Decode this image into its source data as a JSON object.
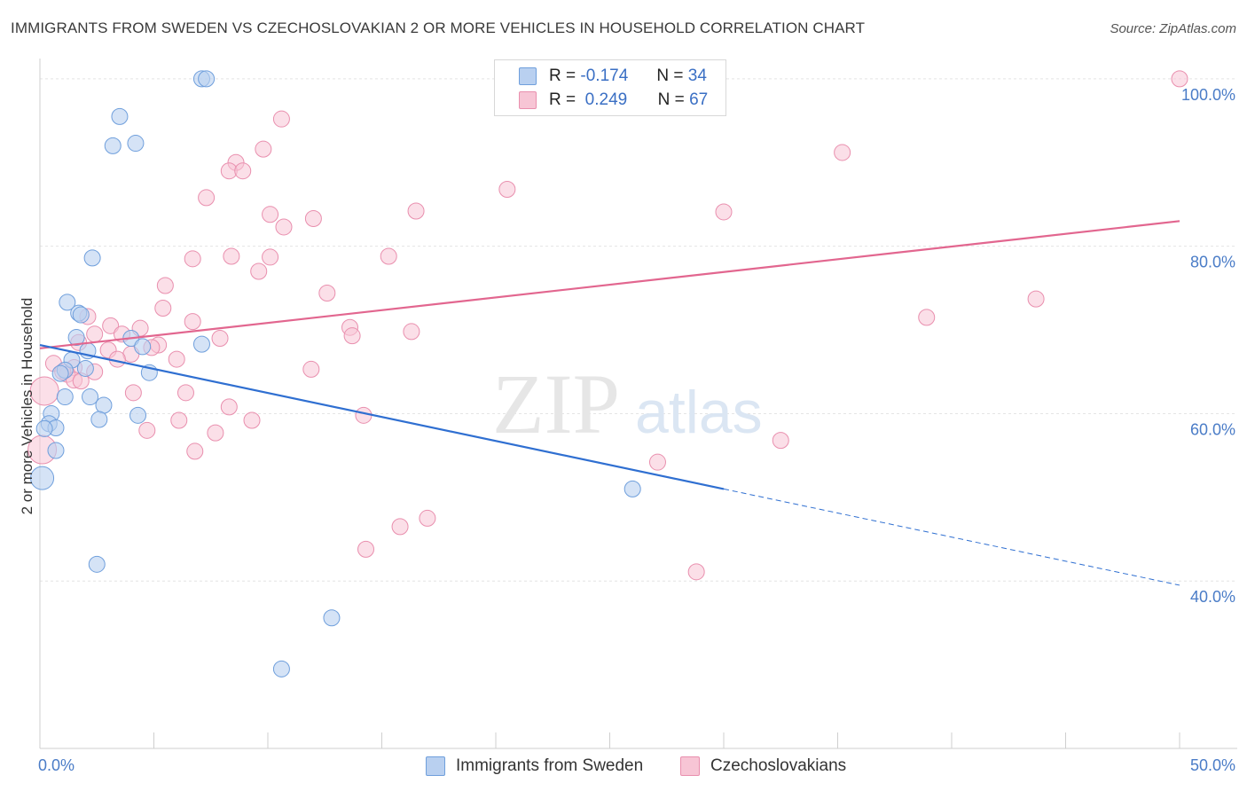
{
  "header": {
    "title": "IMMIGRANTS FROM SWEDEN VS CZECHOSLOVAKIAN 2 OR MORE VEHICLES IN HOUSEHOLD CORRELATION CHART",
    "source": "Source: ZipAtlas.com"
  },
  "legend": {
    "rows": [
      {
        "r_label": "R =",
        "r_value": "-0.174",
        "n_label": "N =",
        "n_value": "34"
      },
      {
        "r_label": "R =",
        "r_value": "0.249",
        "n_label": "N =",
        "n_value": "67"
      }
    ],
    "bottom": [
      "Immigrants from Sweden",
      "Czechoslovakians"
    ]
  },
  "watermark": {
    "zip": "ZIP",
    "atlas": "atlas"
  },
  "colors": {
    "blue_fill": "#b9d0f0",
    "blue_stroke": "#6f9fdc",
    "blue_line": "#2f6fd1",
    "pink_fill": "#f7c5d5",
    "pink_stroke": "#e98fae",
    "pink_line": "#e2668f",
    "tick_text": "#4a7cc7"
  },
  "chart_data": {
    "type": "scatter",
    "title": "IMMIGRANTS FROM SWEDEN VS CZECHOSLOVAKIAN 2 OR MORE VEHICLES IN HOUSEHOLD CORRELATION CHART",
    "xlabel": "",
    "ylabel": "2 or more Vehicles in Household",
    "xlim": [
      0,
      50
    ],
    "ylim": [
      20,
      102
    ],
    "x_tick_labels": [
      "0.0%",
      "50.0%"
    ],
    "y_tick_labels": [
      "100.0%",
      "80.0%",
      "60.0%",
      "40.0%"
    ],
    "y_ticks": [
      100,
      80,
      60,
      40
    ],
    "grid": true,
    "legend_position": "top-center",
    "series": [
      {
        "name": "Immigrants from Sweden",
        "points": [
          [
            7.1,
            100
          ],
          [
            7.3,
            100
          ],
          [
            3.5,
            95.5
          ],
          [
            3.2,
            92
          ],
          [
            4.2,
            92.3
          ],
          [
            2.3,
            78.6
          ],
          [
            1.2,
            73.3
          ],
          [
            1.7,
            72
          ],
          [
            1.8,
            71.8
          ],
          [
            1.6,
            69.1
          ],
          [
            4.0,
            69
          ],
          [
            4.5,
            68
          ],
          [
            7.1,
            68.3
          ],
          [
            2.1,
            67.5
          ],
          [
            1.4,
            66.4
          ],
          [
            1.1,
            65.2
          ],
          [
            2.0,
            65.4
          ],
          [
            0.9,
            64.8
          ],
          [
            4.8,
            64.9
          ],
          [
            1.1,
            62
          ],
          [
            2.2,
            62
          ],
          [
            2.8,
            61
          ],
          [
            0.5,
            60
          ],
          [
            4.3,
            59.8
          ],
          [
            2.6,
            59.3
          ],
          [
            0.4,
            58.8
          ],
          [
            0.7,
            58.3
          ],
          [
            0.2,
            58.2
          ],
          [
            0.7,
            55.6
          ],
          [
            0.1,
            52.3
          ],
          [
            26.0,
            51
          ],
          [
            2.5,
            42
          ],
          [
            12.8,
            35.6
          ],
          [
            10.6,
            29.5
          ]
        ],
        "trend": {
          "x": [
            0,
            30.0
          ],
          "y": [
            68.2,
            51.0
          ]
        },
        "trend_extrapolated": {
          "x": [
            30.0,
            50.0
          ],
          "y": [
            51.0,
            39.5
          ]
        }
      },
      {
        "name": "Czechoslovakians",
        "points": [
          [
            23.5,
            100
          ],
          [
            50,
            100
          ],
          [
            10.6,
            95.2
          ],
          [
            9.8,
            91.6
          ],
          [
            35.2,
            91.2
          ],
          [
            8.6,
            90
          ],
          [
            8.3,
            89
          ],
          [
            8.9,
            89
          ],
          [
            20.5,
            86.8
          ],
          [
            7.3,
            85.8
          ],
          [
            16.5,
            84.2
          ],
          [
            30.0,
            84.1
          ],
          [
            10.1,
            83.8
          ],
          [
            12.0,
            83.3
          ],
          [
            10.7,
            82.3
          ],
          [
            6.7,
            78.5
          ],
          [
            8.4,
            78.8
          ],
          [
            10.1,
            78.7
          ],
          [
            15.3,
            78.8
          ],
          [
            9.6,
            77
          ],
          [
            5.5,
            75.3
          ],
          [
            12.6,
            74.4
          ],
          [
            43.7,
            73.7
          ],
          [
            5.4,
            72.6
          ],
          [
            2.1,
            71.6
          ],
          [
            38.9,
            71.5
          ],
          [
            3.1,
            70.5
          ],
          [
            6.7,
            71
          ],
          [
            4.4,
            70.2
          ],
          [
            13.6,
            70.3
          ],
          [
            2.4,
            69.5
          ],
          [
            3.6,
            69.5
          ],
          [
            16.3,
            69.8
          ],
          [
            13.7,
            69.3
          ],
          [
            7.9,
            69
          ],
          [
            1.7,
            68.5
          ],
          [
            5.2,
            68.2
          ],
          [
            4.9,
            67.9
          ],
          [
            3.0,
            67.6
          ],
          [
            4.0,
            67.1
          ],
          [
            6.0,
            66.5
          ],
          [
            3.4,
            66.5
          ],
          [
            1.5,
            65.5
          ],
          [
            2.4,
            65
          ],
          [
            11.9,
            65.3
          ],
          [
            1.2,
            64.7
          ],
          [
            1.5,
            64
          ],
          [
            1.8,
            63.9
          ],
          [
            0.2,
            62.7
          ],
          [
            4.1,
            62.5
          ],
          [
            6.4,
            62.5
          ],
          [
            8.3,
            60.8
          ],
          [
            14.2,
            59.8
          ],
          [
            6.1,
            59.2
          ],
          [
            9.3,
            59.2
          ],
          [
            4.7,
            58
          ],
          [
            7.7,
            57.7
          ],
          [
            32.5,
            56.8
          ],
          [
            0.1,
            55.7
          ],
          [
            6.8,
            55.5
          ],
          [
            27.1,
            54.2
          ],
          [
            17.0,
            47.5
          ],
          [
            15.8,
            46.5
          ],
          [
            14.3,
            43.8
          ],
          [
            28.8,
            41.1
          ],
          [
            0.6,
            66
          ],
          [
            1.0,
            65
          ]
        ],
        "trend": {
          "x": [
            0,
            50
          ],
          "y": [
            67.8,
            83.0
          ]
        }
      }
    ]
  }
}
